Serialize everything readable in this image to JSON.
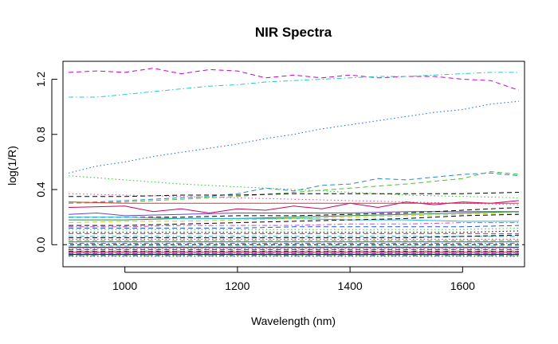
{
  "chart_data": {
    "type": "line",
    "title": "NIR Spectra",
    "xlabel": "Wavelength (nm)",
    "ylabel": "log(1/R)",
    "xlim": [
      890,
      1710
    ],
    "ylim": [
      -0.16,
      1.33
    ],
    "x_ticks": [
      1000,
      1200,
      1400,
      1600
    ],
    "y_ticks": [
      0.0,
      0.4,
      0.8,
      1.2
    ],
    "x_tick_labels": [
      "1000",
      "1200",
      "1400",
      "1600"
    ],
    "y_tick_labels": [
      "0.0",
      "0.4",
      "0.8",
      "1.2"
    ],
    "reference_line": {
      "y": 0.0,
      "style": "dashed",
      "color": "#000000"
    },
    "grid": false,
    "legend": "none",
    "series": [
      {
        "color": "#CC00CC",
        "dash": "dashed",
        "x": [
          900,
          950,
          1000,
          1050,
          1100,
          1150,
          1200,
          1250,
          1300,
          1350,
          1400,
          1450,
          1500,
          1550,
          1600,
          1650,
          1700
        ],
        "y": [
          1.25,
          1.26,
          1.25,
          1.28,
          1.24,
          1.27,
          1.26,
          1.21,
          1.23,
          1.21,
          1.23,
          1.21,
          1.22,
          1.22,
          1.2,
          1.19,
          1.12
        ]
      },
      {
        "color": "#22CCCC",
        "dash": "dashdot",
        "x": [
          900,
          950,
          1000,
          1050,
          1100,
          1150,
          1200,
          1250,
          1300,
          1350,
          1400,
          1450,
          1500,
          1550,
          1600,
          1650,
          1700
        ],
        "y": [
          1.07,
          1.07,
          1.09,
          1.11,
          1.13,
          1.15,
          1.16,
          1.18,
          1.19,
          1.2,
          1.21,
          1.22,
          1.22,
          1.23,
          1.24,
          1.25,
          1.25
        ]
      },
      {
        "color": "#2266DD",
        "dash": "dotted",
        "x": [
          900,
          950,
          1000,
          1050,
          1100,
          1150,
          1200,
          1250,
          1300,
          1350,
          1400,
          1450,
          1500,
          1550,
          1600,
          1650,
          1700
        ],
        "y": [
          0.52,
          0.57,
          0.6,
          0.64,
          0.67,
          0.7,
          0.73,
          0.77,
          0.8,
          0.84,
          0.87,
          0.9,
          0.93,
          0.96,
          0.98,
          1.02,
          1.04
        ]
      },
      {
        "color": "#22CC22",
        "dash": "dotted",
        "x": [
          900,
          1000,
          1100,
          1200,
          1300,
          1400,
          1500,
          1600,
          1700
        ],
        "y": [
          0.5,
          0.47,
          0.44,
          0.42,
          0.4,
          0.38,
          0.36,
          0.35,
          0.34
        ]
      },
      {
        "color": "#2288CC",
        "dash": "dashed",
        "x": [
          900,
          1000,
          1100,
          1150,
          1200,
          1250,
          1300,
          1350,
          1400,
          1450,
          1500,
          1550,
          1600,
          1650,
          1700
        ],
        "y": [
          0.3,
          0.32,
          0.34,
          0.35,
          0.37,
          0.41,
          0.39,
          0.43,
          0.44,
          0.48,
          0.47,
          0.49,
          0.51,
          0.52,
          0.5
        ]
      },
      {
        "color": "#55BB33",
        "dash": "dashed",
        "x": [
          900,
          1000,
          1100,
          1200,
          1300,
          1400,
          1500,
          1600,
          1650,
          1700
        ],
        "y": [
          0.3,
          0.31,
          0.33,
          0.35,
          0.38,
          0.41,
          0.44,
          0.48,
          0.53,
          0.51
        ]
      },
      {
        "color": "#000000",
        "dash": "dashed",
        "x": [
          900,
          1000,
          1100,
          1200,
          1300,
          1400,
          1500,
          1600,
          1700
        ],
        "y": [
          0.35,
          0.35,
          0.36,
          0.36,
          0.37,
          0.37,
          0.37,
          0.37,
          0.38
        ]
      },
      {
        "color": "#DD44AA",
        "dash": "dotted",
        "x": [
          900,
          1000,
          1100,
          1200,
          1300,
          1400,
          1500,
          1600,
          1700
        ],
        "y": [
          0.37,
          0.36,
          0.35,
          0.34,
          0.33,
          0.32,
          0.31,
          0.3,
          0.29
        ]
      },
      {
        "color": "#CC0066",
        "dash": "solid",
        "x": [
          900,
          1000,
          1050,
          1100,
          1150,
          1200,
          1250,
          1300,
          1350,
          1400,
          1450,
          1500,
          1550,
          1600,
          1650,
          1700
        ],
        "y": [
          0.27,
          0.28,
          0.24,
          0.26,
          0.23,
          0.26,
          0.25,
          0.28,
          0.26,
          0.3,
          0.27,
          0.31,
          0.29,
          0.31,
          0.3,
          0.32
        ]
      },
      {
        "color": "#DD3333",
        "dash": "solid",
        "x": [
          900,
          1000,
          1100,
          1200,
          1300,
          1400,
          1500,
          1600,
          1700
        ],
        "y": [
          0.31,
          0.3,
          0.3,
          0.3,
          0.3,
          0.3,
          0.3,
          0.3,
          0.3
        ]
      },
      {
        "color": "#6644CC",
        "dash": "solid",
        "x": [
          900,
          950,
          1000,
          1100,
          1200,
          1300,
          1400,
          1500,
          1600,
          1700
        ],
        "y": [
          0.22,
          0.23,
          0.21,
          0.22,
          0.23,
          0.23,
          0.23,
          0.24,
          0.24,
          0.24
        ]
      },
      {
        "color": "#000000",
        "dash": "dashed",
        "x": [
          900,
          1000,
          1100,
          1200,
          1300,
          1400,
          1500,
          1600,
          1700
        ],
        "y": [
          0.2,
          0.2,
          0.2,
          0.21,
          0.21,
          0.22,
          0.23,
          0.25,
          0.27
        ]
      },
      {
        "color": "#228844",
        "dash": "solid",
        "x": [
          900,
          1000,
          1100,
          1200,
          1300,
          1400,
          1500,
          1600,
          1700
        ],
        "y": [
          0.18,
          0.18,
          0.19,
          0.19,
          0.2,
          0.21,
          0.22,
          0.23,
          0.24
        ]
      },
      {
        "color": "#22BBDD",
        "dash": "solid",
        "x": [
          900,
          1000,
          1100,
          1200,
          1300,
          1400,
          1500,
          1600,
          1700
        ],
        "y": [
          0.2,
          0.2,
          0.19,
          0.19,
          0.19,
          0.18,
          0.18,
          0.17,
          0.17
        ]
      },
      {
        "color": "#CCCC22",
        "dash": "dashed",
        "x": [
          900,
          1000,
          1100,
          1200,
          1300,
          1400,
          1500,
          1600,
          1700
        ],
        "y": [
          0.16,
          0.17,
          0.17,
          0.18,
          0.19,
          0.2,
          0.21,
          0.22,
          0.23
        ]
      },
      {
        "color": "#000000",
        "dash": "dashed",
        "x": [
          900,
          1000,
          1100,
          1200,
          1300,
          1400,
          1500,
          1600,
          1700
        ],
        "y": [
          0.14,
          0.14,
          0.15,
          0.16,
          0.17,
          0.18,
          0.19,
          0.21,
          0.22
        ]
      },
      {
        "color": "#CC44CC",
        "dash": "dashdot",
        "x": [
          900,
          1000,
          1100,
          1200,
          1300,
          1400,
          1500,
          1600,
          1700
        ],
        "y": [
          0.13,
          0.13,
          0.14,
          0.14,
          0.14,
          0.15,
          0.15,
          0.16,
          0.16
        ]
      },
      {
        "color": "#2255DD",
        "dash": "dashed",
        "x": [
          900,
          1000,
          1100,
          1200,
          1300,
          1400,
          1500,
          1600,
          1700
        ],
        "y": [
          0.12,
          0.12,
          0.12,
          0.12,
          0.13,
          0.13,
          0.13,
          0.13,
          0.14
        ]
      },
      {
        "color": "#44BB44",
        "dash": "dotted",
        "x": [
          900,
          1000,
          1100,
          1200,
          1300,
          1400,
          1500,
          1600,
          1700
        ],
        "y": [
          0.11,
          0.11,
          0.11,
          0.11,
          0.11,
          0.11,
          0.11,
          0.11,
          0.12
        ]
      },
      {
        "color": "#000000",
        "dash": "dotted",
        "x": [
          900,
          1000,
          1100,
          1200,
          1300,
          1400,
          1500,
          1600,
          1700
        ],
        "y": [
          0.09,
          0.09,
          0.09,
          0.09,
          0.09,
          0.09,
          0.09,
          0.09,
          0.1
        ]
      },
      {
        "color": "#CC2288",
        "dash": "dashed",
        "x": [
          900,
          1000,
          1100,
          1200,
          1300,
          1400,
          1500,
          1600,
          1700
        ],
        "y": [
          0.08,
          0.08,
          0.08,
          0.08,
          0.08,
          0.08,
          0.08,
          0.08,
          0.08
        ]
      },
      {
        "color": "#22AAAA",
        "dash": "dashdot",
        "x": [
          900,
          1000,
          1100,
          1200,
          1300,
          1400,
          1500,
          1600,
          1700
        ],
        "y": [
          0.06,
          0.06,
          0.06,
          0.06,
          0.06,
          0.06,
          0.06,
          0.06,
          0.06
        ]
      },
      {
        "color": "#000000",
        "dash": "dashed",
        "x": [
          900,
          1000,
          1100,
          1200,
          1300,
          1400,
          1500,
          1600,
          1700
        ],
        "y": [
          0.05,
          0.05,
          0.05,
          0.05,
          0.05,
          0.05,
          0.05,
          0.06,
          0.07
        ]
      },
      {
        "color": "#8844CC",
        "dash": "dotted",
        "x": [
          900,
          1000,
          1100,
          1200,
          1300,
          1400,
          1500,
          1600,
          1700
        ],
        "y": [
          0.04,
          0.04,
          0.04,
          0.04,
          0.04,
          0.04,
          0.04,
          0.04,
          0.04
        ]
      },
      {
        "color": "#66AA22",
        "dash": "dashed",
        "x": [
          900,
          1000,
          1100,
          1200,
          1300,
          1400,
          1500,
          1600,
          1700
        ],
        "y": [
          0.03,
          0.03,
          0.03,
          0.03,
          0.03,
          0.03,
          0.03,
          0.03,
          0.03
        ]
      },
      {
        "color": "#2266DD",
        "dash": "solid",
        "x": [
          900,
          1000,
          1100,
          1200,
          1300,
          1400,
          1500,
          1600,
          1700
        ],
        "y": [
          0.02,
          0.02,
          0.02,
          0.02,
          0.02,
          0.02,
          0.02,
          0.02,
          0.02
        ]
      },
      {
        "color": "#CC3333",
        "dash": "dashdot",
        "x": [
          900,
          1000,
          1100,
          1200,
          1300,
          1400,
          1500,
          1600,
          1700
        ],
        "y": [
          0.01,
          0.01,
          0.01,
          0.01,
          0.01,
          0.01,
          0.01,
          0.01,
          0.01
        ]
      },
      {
        "color": "#22CCCC",
        "dash": "dashed",
        "x": [
          900,
          1000,
          1100,
          1200,
          1300,
          1400,
          1500,
          1600,
          1700
        ],
        "y": [
          -0.01,
          -0.01,
          -0.01,
          -0.01,
          -0.01,
          -0.01,
          -0.01,
          -0.01,
          -0.01
        ]
      },
      {
        "color": "#000000",
        "dash": "solid",
        "x": [
          900,
          1000,
          1100,
          1200,
          1300,
          1400,
          1500,
          1600,
          1700
        ],
        "y": [
          -0.02,
          -0.02,
          -0.02,
          -0.02,
          -0.02,
          -0.02,
          -0.02,
          -0.02,
          -0.02
        ]
      },
      {
        "color": "#DD44DD",
        "dash": "dotted",
        "x": [
          900,
          1000,
          1100,
          1200,
          1300,
          1400,
          1500,
          1600,
          1700
        ],
        "y": [
          -0.03,
          -0.03,
          -0.03,
          -0.03,
          -0.03,
          -0.03,
          -0.03,
          -0.03,
          -0.03
        ]
      },
      {
        "color": "#2244BB",
        "dash": "dashed",
        "x": [
          900,
          1000,
          1100,
          1200,
          1300,
          1400,
          1500,
          1600,
          1700
        ],
        "y": [
          -0.035,
          -0.035,
          -0.035,
          -0.035,
          -0.035,
          -0.035,
          -0.035,
          -0.035,
          -0.035
        ]
      },
      {
        "color": "#44BB44",
        "dash": "dashdot",
        "x": [
          900,
          1000,
          1100,
          1200,
          1300,
          1400,
          1500,
          1600,
          1700
        ],
        "y": [
          -0.045,
          -0.045,
          -0.045,
          -0.045,
          -0.045,
          -0.045,
          -0.045,
          -0.045,
          -0.045
        ]
      },
      {
        "color": "#000000",
        "dash": "dashed",
        "x": [
          900,
          1000,
          1100,
          1200,
          1300,
          1400,
          1500,
          1600,
          1700
        ],
        "y": [
          -0.05,
          -0.05,
          -0.05,
          -0.05,
          -0.05,
          -0.05,
          -0.05,
          -0.05,
          -0.05
        ]
      },
      {
        "color": "#CC2266",
        "dash": "solid",
        "x": [
          900,
          1000,
          1100,
          1200,
          1300,
          1400,
          1500,
          1600,
          1700
        ],
        "y": [
          -0.055,
          -0.055,
          -0.055,
          -0.055,
          -0.055,
          -0.055,
          -0.055,
          -0.055,
          -0.055
        ]
      },
      {
        "color": "#22AADD",
        "dash": "dotted",
        "x": [
          900,
          1000,
          1100,
          1200,
          1300,
          1400,
          1500,
          1600,
          1700
        ],
        "y": [
          -0.06,
          -0.06,
          -0.06,
          -0.06,
          -0.06,
          -0.06,
          -0.06,
          -0.06,
          -0.06
        ]
      },
      {
        "color": "#8833CC",
        "dash": "dashed",
        "x": [
          900,
          1000,
          1100,
          1200,
          1300,
          1400,
          1500,
          1600,
          1700
        ],
        "y": [
          -0.065,
          -0.065,
          -0.065,
          -0.065,
          -0.065,
          -0.065,
          -0.065,
          -0.065,
          -0.065
        ]
      },
      {
        "color": "#000000",
        "dash": "solid",
        "x": [
          900,
          1000,
          1100,
          1200,
          1300,
          1400,
          1500,
          1600,
          1700
        ],
        "y": [
          -0.07,
          -0.07,
          -0.07,
          -0.07,
          -0.07,
          -0.07,
          -0.07,
          -0.07,
          -0.07
        ]
      },
      {
        "color": "#22CC22",
        "dash": "dashed",
        "x": [
          900,
          1000,
          1100,
          1200,
          1300,
          1400,
          1500,
          1600,
          1700
        ],
        "y": [
          -0.075,
          -0.075,
          -0.075,
          -0.075,
          -0.075,
          -0.075,
          -0.075,
          -0.075,
          -0.075
        ]
      },
      {
        "color": "#2255DD",
        "dash": "dashdot",
        "x": [
          900,
          1000,
          1100,
          1200,
          1300,
          1400,
          1500,
          1600,
          1700
        ],
        "y": [
          -0.08,
          -0.08,
          -0.08,
          -0.08,
          -0.08,
          -0.08,
          -0.08,
          -0.08,
          -0.08
        ]
      },
      {
        "color": "#DD22AA",
        "dash": "dotted",
        "x": [
          900,
          1000,
          1100,
          1200,
          1300,
          1400,
          1500,
          1600,
          1700
        ],
        "y": [
          -0.085,
          -0.085,
          -0.085,
          -0.085,
          -0.085,
          -0.085,
          -0.085,
          -0.085,
          -0.085
        ]
      }
    ]
  }
}
